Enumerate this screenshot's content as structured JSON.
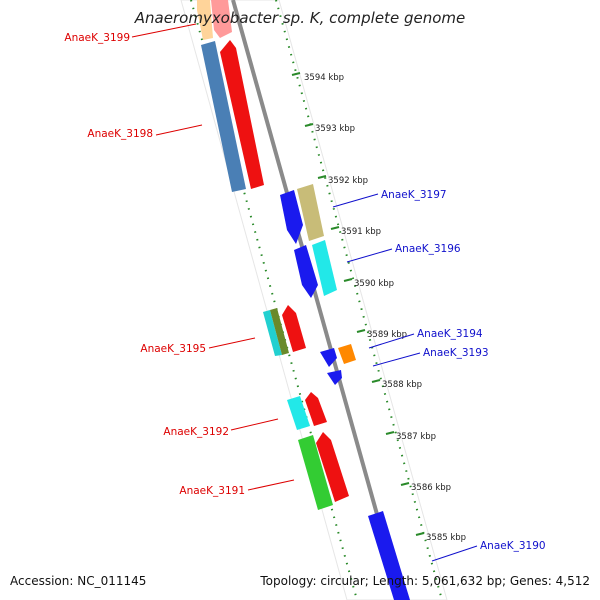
{
  "title": "Anaeromyxobacter sp. K, complete genome",
  "accession_label": "Accession: NC_011145",
  "topology_label": "Topology: circular; Length: 5,061,632 bp; Genes: 4,512",
  "colors": {
    "backbone": "#8a8a8a",
    "tick": "#2a8a2a",
    "left_label": "#dd0000",
    "right_label": "#1010cc"
  },
  "scale_labels": [
    "3594 kbp",
    "3593 kbp",
    "3592 kbp",
    "3591 kbp",
    "3590 kbp",
    "3589 kbp",
    "3588 kbp",
    "3587 kbp",
    "3586 kbp",
    "3585 kbp"
  ],
  "gene_labels": {
    "left": [
      "AnaeK_3199",
      "AnaeK_3198",
      "AnaeK_3195",
      "AnaeK_3192",
      "AnaeK_3191"
    ],
    "right": [
      "AnaeK_3197",
      "AnaeK_3196",
      "AnaeK_3194",
      "AnaeK_3193",
      "AnaeK_3190"
    ]
  },
  "features": [
    {
      "color": "#ffd49a"
    },
    {
      "color": "#ff9a9a"
    },
    {
      "color": "#4a7fb5"
    },
    {
      "color": "#ee1111"
    },
    {
      "color": "#1a1aee"
    },
    {
      "color": "#c8bc78"
    },
    {
      "color": "#1a1aee"
    },
    {
      "color": "#22e8e8"
    },
    {
      "color": "#22d0d0"
    },
    {
      "color": "#6a8a2a"
    },
    {
      "color": "#ee1111"
    },
    {
      "color": "#1a1aee"
    },
    {
      "color": "#ff8800"
    },
    {
      "color": "#1a1aee"
    },
    {
      "color": "#22e8e8"
    },
    {
      "color": "#ee1111"
    },
    {
      "color": "#33cc33"
    },
    {
      "color": "#ee1111"
    },
    {
      "color": "#1a1aee"
    }
  ]
}
